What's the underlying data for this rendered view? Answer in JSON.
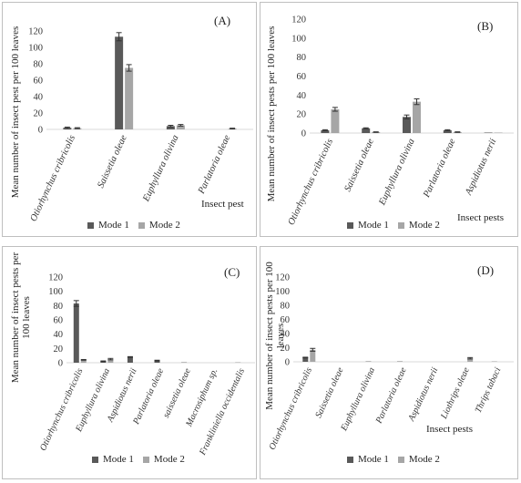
{
  "legend": {
    "mode1": "Mode 1",
    "mode2": "Mode 2"
  },
  "colors": {
    "mode1": "#595959",
    "mode2": "#a6a6a6",
    "axis": "#d9d9d9",
    "error": "#333333"
  },
  "chart_data": [
    {
      "type": "bar",
      "panel_label": "(A)",
      "ylabel": "Mean number of insect pest per 100 leaves",
      "xlabel": "Insect pest",
      "ylim": [
        0,
        120
      ],
      "yticks": [
        0,
        20,
        40,
        60,
        80,
        100,
        120
      ],
      "categories": [
        "Otiorhynchus cribricolis",
        "Saissetia oleae",
        "Euphyllura olivina",
        "Parlatoria oleae"
      ],
      "series": [
        {
          "name": "Mode 1",
          "values": [
            2,
            113,
            4,
            0
          ],
          "errors": [
            0.8,
            5,
            1,
            0
          ]
        },
        {
          "name": "Mode 2",
          "values": [
            1.5,
            75,
            5,
            1
          ],
          "errors": [
            0.6,
            4,
            1,
            0.5
          ]
        }
      ]
    },
    {
      "type": "bar",
      "panel_label": "(B)",
      "ylabel": "Mean number of insect pests  per 100 leaves",
      "xlabel": "Insect pests",
      "ylim": [
        0,
        120
      ],
      "yticks": [
        0,
        20,
        40,
        60,
        80,
        100,
        120
      ],
      "categories": [
        "Otiorhynchus cribricolis",
        "Saissetia oleae",
        "Euphyllura olivina",
        "Parlatoria oleae",
        "Aspidiotus nerii"
      ],
      "series": [
        {
          "name": "Mode 1",
          "values": [
            3,
            5,
            17,
            3,
            0.5
          ],
          "errors": [
            0.5,
            0.5,
            2,
            0.5,
            0
          ]
        },
        {
          "name": "Mode 2",
          "values": [
            25,
            1,
            33,
            1,
            0.5
          ],
          "errors": [
            2,
            0.3,
            3,
            0.3,
            0
          ]
        }
      ]
    },
    {
      "type": "bar",
      "panel_label": "(C)",
      "ylabel": "Mean number of insect pests per 100 leaves",
      "xlabel": "Insect pests",
      "ylim": [
        0,
        120
      ],
      "yticks": [
        0,
        20,
        40,
        60,
        80,
        100,
        120
      ],
      "categories": [
        "Otiorhynchus cribricolis",
        "Euphyllura olivina",
        "Aspidiotus nerii",
        "Parlatoria oleae",
        "saissetia oleae",
        "Macrosiphum sp.",
        "Frankliniella occidentalis"
      ],
      "series": [
        {
          "name": "Mode 1",
          "values": [
            83,
            2,
            8,
            3,
            0.5,
            0,
            0.3
          ],
          "errors": [
            4,
            0.5,
            0.5,
            0.5,
            0,
            0,
            0
          ]
        },
        {
          "name": "Mode 2",
          "values": [
            4,
            5,
            0,
            0,
            0,
            0,
            0
          ],
          "errors": [
            0.5,
            1,
            0,
            0,
            0,
            0,
            0
          ]
        }
      ]
    },
    {
      "type": "bar",
      "panel_label": "(D)",
      "ylabel": "Mean number of insect pests per 100 leaves",
      "xlabel": "Insect pests",
      "ylim": [
        0,
        120
      ],
      "yticks": [
        0,
        20,
        40,
        60,
        80,
        100,
        120
      ],
      "categories": [
        "Otiorhynchus cribricolis",
        "Saissetia oleae",
        "Euphyllura olivina",
        "Parlatoria oleae",
        "Aspidiotus nerii",
        "Liothrips oleae",
        "Thrips tabaci"
      ],
      "series": [
        {
          "name": "Mode 1",
          "values": [
            6,
            0,
            0.5,
            0.5,
            0,
            0,
            0.3
          ],
          "errors": [
            0.5,
            0,
            0,
            0,
            0,
            0,
            0
          ]
        },
        {
          "name": "Mode 2",
          "values": [
            17,
            0,
            0,
            0,
            0,
            5,
            0
          ],
          "errors": [
            2,
            0,
            0,
            0,
            0,
            1,
            0
          ]
        }
      ]
    }
  ]
}
